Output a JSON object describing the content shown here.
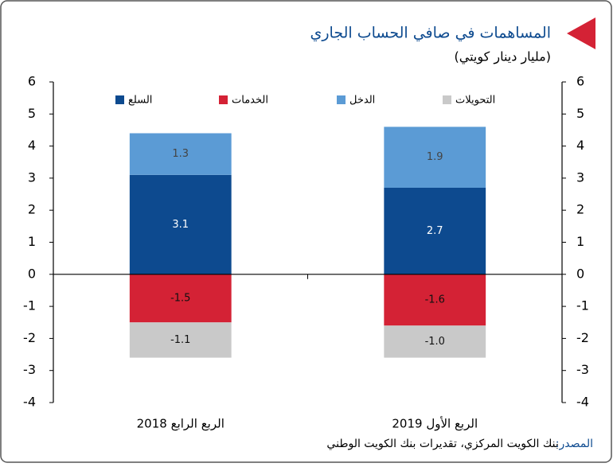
{
  "chart_data": {
    "type": "stacked_bar",
    "title": "المساهمات في صافي الحساب الجاري",
    "subtitle": "(مليار دينار كويتي)",
    "categories": [
      "الربع الرابع 2018",
      "الربع الأول 2019"
    ],
    "series": [
      {
        "name": "السلع",
        "color": "#0d4a8f",
        "values": [
          3.1,
          2.7
        ]
      },
      {
        "name": "الخدمات",
        "color": "#d42235",
        "values": [
          -1.5,
          -1.6
        ]
      },
      {
        "name": "الدخل",
        "color": "#5b9bd5",
        "values": [
          1.3,
          1.9
        ]
      },
      {
        "name": "التحويلات",
        "color": "#c9c9c9",
        "values": [
          -1.1,
          -1.0
        ],
        "value_labels": [
          "-1.1",
          "-1.0"
        ]
      }
    ],
    "ylim": [
      -4,
      6
    ],
    "yticks": [
      -4,
      -3,
      -2,
      -1,
      0,
      1,
      2,
      3,
      4,
      5,
      6
    ],
    "y2lim": [
      -4,
      6
    ],
    "y2ticks": [
      -4,
      -3,
      -2,
      -1,
      0,
      1,
      2,
      3,
      4,
      5,
      6
    ],
    "legend": "top",
    "source_label": "المصدر:",
    "source": "بنك الكويت المركزي، تقديرات بنك الكويت الوطني"
  }
}
